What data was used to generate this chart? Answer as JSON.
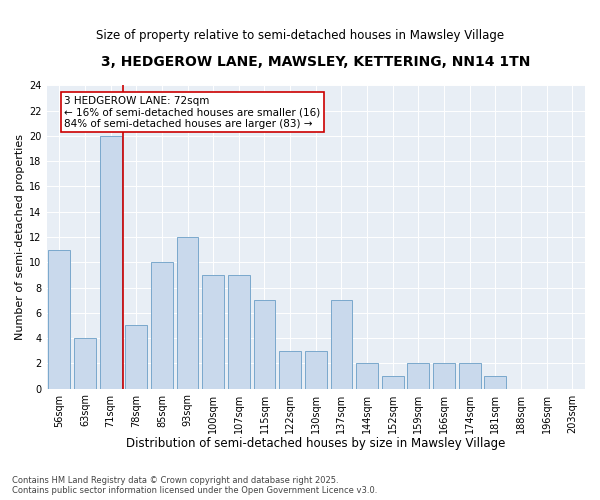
{
  "title": "3, HEDGEROW LANE, MAWSLEY, KETTERING, NN14 1TN",
  "subtitle": "Size of property relative to semi-detached houses in Mawsley Village",
  "xlabel": "Distribution of semi-detached houses by size in Mawsley Village",
  "ylabel": "Number of semi-detached properties",
  "categories": [
    "56sqm",
    "63sqm",
    "71sqm",
    "78sqm",
    "85sqm",
    "93sqm",
    "100sqm",
    "107sqm",
    "115sqm",
    "122sqm",
    "130sqm",
    "137sqm",
    "144sqm",
    "152sqm",
    "159sqm",
    "166sqm",
    "174sqm",
    "181sqm",
    "188sqm",
    "196sqm",
    "203sqm"
  ],
  "values": [
    11,
    4,
    20,
    5,
    10,
    12,
    9,
    9,
    7,
    3,
    3,
    7,
    2,
    1,
    2,
    2,
    2,
    1,
    0,
    0,
    0
  ],
  "bar_color": "#c9d9ec",
  "bar_edge_color": "#7aa8cc",
  "highlight_bar_index": 2,
  "highlight_line_color": "#cc0000",
  "annotation_text": "3 HEDGEROW LANE: 72sqm\n← 16% of semi-detached houses are smaller (16)\n84% of semi-detached houses are larger (83) →",
  "annotation_box_color": "#ffffff",
  "annotation_box_edge_color": "#cc0000",
  "ylim": [
    0,
    24
  ],
  "yticks": [
    0,
    2,
    4,
    6,
    8,
    10,
    12,
    14,
    16,
    18,
    20,
    22,
    24
  ],
  "footer": "Contains HM Land Registry data © Crown copyright and database right 2025.\nContains public sector information licensed under the Open Government Licence v3.0.",
  "plot_bg_color": "#e8eef5",
  "title_fontsize": 10,
  "subtitle_fontsize": 8.5,
  "xlabel_fontsize": 8.5,
  "ylabel_fontsize": 8,
  "tick_fontsize": 7,
  "annotation_fontsize": 7.5,
  "footer_fontsize": 6
}
